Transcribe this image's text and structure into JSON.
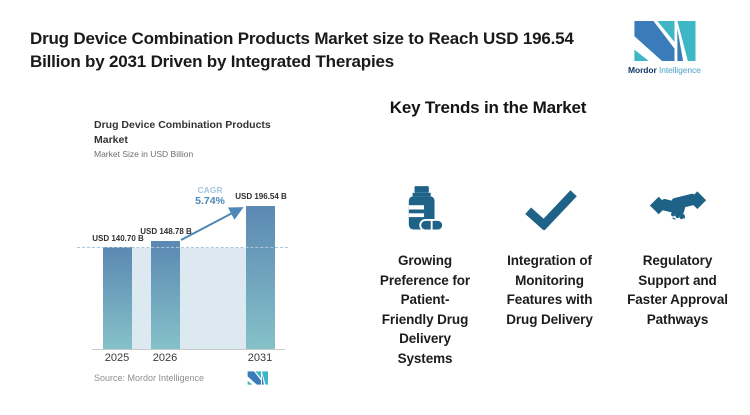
{
  "header": {
    "title": "Drug Device Combination Products Market size to Reach USD 196.54\nBillion by 2031 Driven by Integrated Therapies"
  },
  "brand": {
    "name_bold": "Mordor",
    "name_light": "Intelligence"
  },
  "chart": {
    "title": "Drug Device Combination Products\nMarket",
    "subtitle": "Market Size in USD Billion",
    "cagr_label": "CAGR",
    "cagr_value": "5.74%",
    "source": "Source: Mordor Intelligence"
  },
  "chart_data": {
    "type": "bar",
    "title": "Drug Device Combination Products Market",
    "ylabel": "Market Size in USD Billion",
    "categories": [
      "2025",
      "2026",
      "2031"
    ],
    "values": [
      140.7,
      148.78,
      196.54
    ],
    "bar_labels": [
      "USD 140.70 B",
      "USD 148.78 B",
      "USD 196.54 B"
    ],
    "annotations": [
      "CAGR 5.74%"
    ],
    "ylim": [
      0,
      210
    ],
    "grid": false,
    "legend": "none",
    "reference_line": 140.7
  },
  "trends": {
    "heading": "Key Trends in the Market",
    "items": [
      {
        "icon": "pill-bottle-icon",
        "label": "Growing\nPreference for\nPatient-\nFriendly Drug\nDelivery\nSystems"
      },
      {
        "icon": "checkmark-icon",
        "label": "Integration of\nMonitoring\nFeatures with\nDrug Delivery"
      },
      {
        "icon": "handshake-icon",
        "label": "Regulatory\nSupport and\nFaster Approval\nPathways"
      }
    ]
  },
  "colors": {
    "bar-top": "#5b88b2",
    "bar-bottom": "#85c1c9",
    "band": "#dde9f1",
    "dash": "#a9c6da",
    "arrow": "#4d87b5",
    "cagr-label": "#a5c7e0",
    "icon": "#1e6387",
    "logo-blue": "#3a7cba",
    "logo-teal": "#3fb6c6"
  }
}
